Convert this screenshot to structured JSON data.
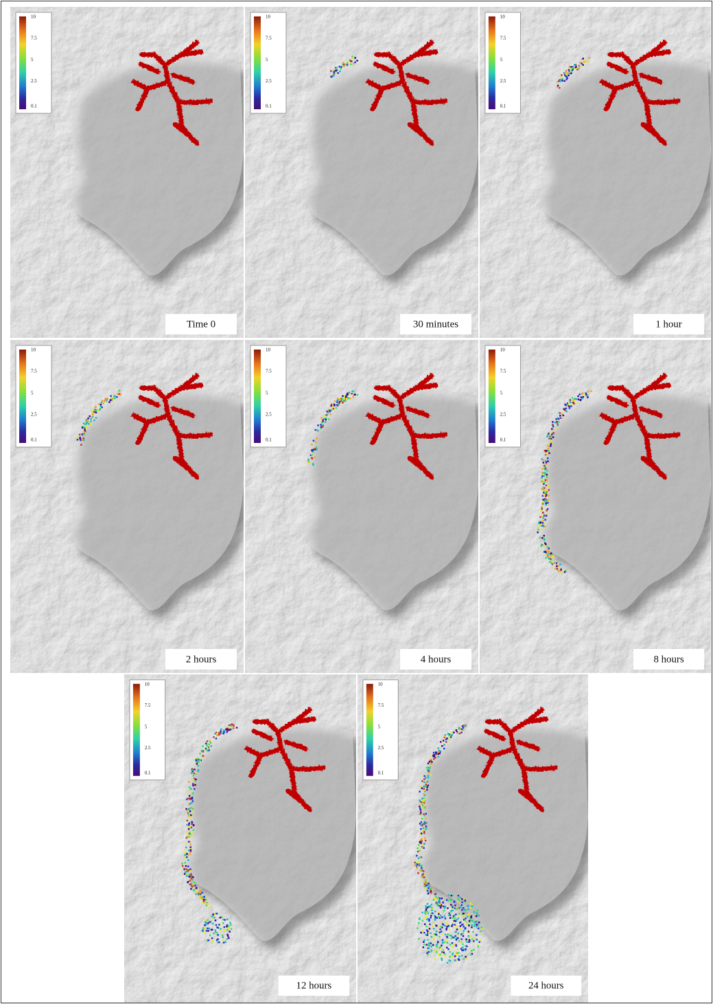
{
  "legend": {
    "ticks": [
      10,
      7.5,
      5,
      2.5,
      0.1
    ]
  },
  "panels": [
    {
      "label": "Time 0"
    },
    {
      "label": "30 minutes"
    },
    {
      "label": "1 hour"
    },
    {
      "label": "2 hours"
    },
    {
      "label": "4 hours"
    },
    {
      "label": "8 hours"
    },
    {
      "label": "12 hours"
    },
    {
      "label": "24 hours"
    }
  ]
}
